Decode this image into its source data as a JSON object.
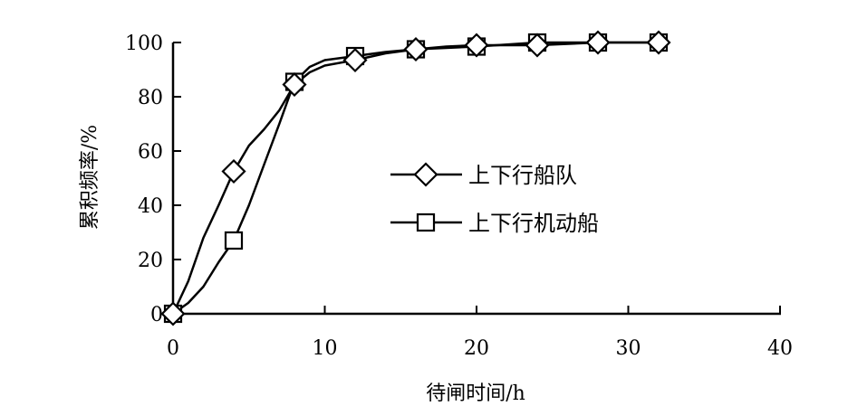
{
  "chart_data": {
    "type": "line",
    "xlabel": "待闸时间/h",
    "ylabel": "累积频率/%",
    "xlim": [
      0,
      40
    ],
    "ylim": [
      0,
      100
    ],
    "xticks": [
      "0",
      "10",
      "20",
      "30",
      "40"
    ],
    "yticks": [
      "0",
      "20",
      "40",
      "60",
      "80",
      "100"
    ],
    "grid": false,
    "legend_position": "center-right",
    "series": [
      {
        "name": "上下行船队",
        "marker": "diamond",
        "color": "#000000",
        "marker_points": [
          [
            0,
            0
          ],
          [
            4,
            52.5
          ],
          [
            8,
            84.5
          ],
          [
            12,
            93.5
          ],
          [
            16,
            97.5
          ],
          [
            20,
            99
          ],
          [
            24,
            99
          ],
          [
            28,
            100
          ],
          [
            32,
            100
          ]
        ],
        "curve": [
          [
            0,
            0
          ],
          [
            1,
            12
          ],
          [
            2,
            28
          ],
          [
            3,
            40
          ],
          [
            4,
            52.5
          ],
          [
            5,
            62
          ],
          [
            6,
            68
          ],
          [
            7,
            75
          ],
          [
            8,
            84.5
          ],
          [
            9,
            89
          ],
          [
            10,
            91.5
          ],
          [
            12,
            93.5
          ],
          [
            14,
            96
          ],
          [
            16,
            97.5
          ],
          [
            18,
            98.5
          ],
          [
            20,
            99
          ],
          [
            24,
            99
          ],
          [
            28,
            100
          ],
          [
            32,
            100
          ]
        ]
      },
      {
        "name": "上下行机动船",
        "marker": "square",
        "color": "#000000",
        "marker_points": [
          [
            0,
            0
          ],
          [
            4,
            27
          ],
          [
            8,
            85.5
          ],
          [
            12,
            95
          ],
          [
            16,
            97.5
          ],
          [
            20,
            98.5
          ],
          [
            24,
            100
          ],
          [
            28,
            100
          ],
          [
            32,
            100
          ]
        ],
        "curve": [
          [
            0,
            0
          ],
          [
            1,
            4
          ],
          [
            2,
            10
          ],
          [
            3,
            19
          ],
          [
            4,
            27
          ],
          [
            5,
            40
          ],
          [
            6,
            55
          ],
          [
            7,
            70
          ],
          [
            8,
            85.5
          ],
          [
            9,
            91
          ],
          [
            10,
            93.5
          ],
          [
            12,
            95
          ],
          [
            14,
            96.5
          ],
          [
            16,
            97.5
          ],
          [
            18,
            98
          ],
          [
            20,
            98.5
          ],
          [
            24,
            100
          ],
          [
            28,
            100
          ],
          [
            32,
            100
          ]
        ]
      }
    ]
  }
}
